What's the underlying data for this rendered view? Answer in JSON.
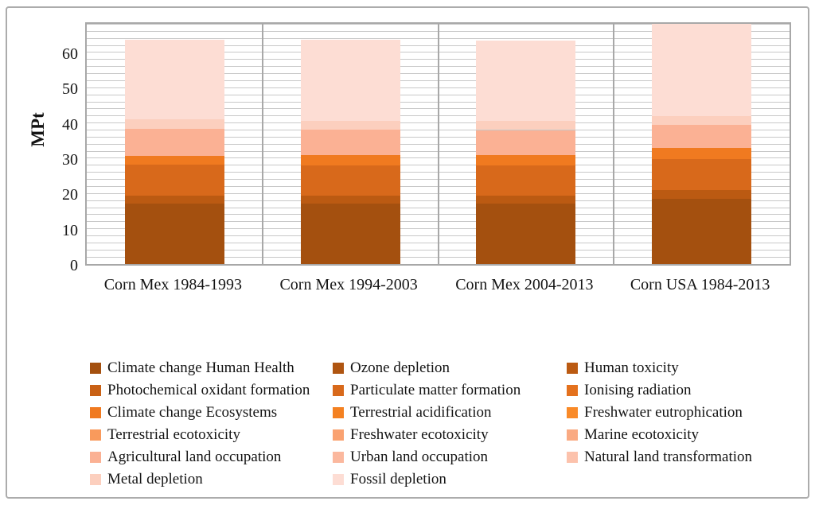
{
  "chart_data": {
    "type": "bar",
    "stacked": true,
    "title": "",
    "xlabel": "",
    "ylabel": "MPt",
    "ylim": [
      0,
      69
    ],
    "y_ticks": [
      0,
      10,
      20,
      30,
      40,
      50,
      60
    ],
    "grid": {
      "show": true,
      "minor_step": 2,
      "color": "#C8C8C8"
    },
    "legend_position": "bottom",
    "legend_columns": 3,
    "categories": [
      "Corn Mex 1984-1993",
      "Corn Mex 1994-2003",
      "Corn Mex 2004-2013",
      "Corn USA 1984-2013"
    ],
    "series": [
      {
        "name": "Climate change Human Health",
        "color": "#A4500F",
        "values": [
          17.1,
          17.1,
          17.2,
          18.6
        ]
      },
      {
        "name": "Ozone depletion",
        "color": "#AF5511",
        "values": [
          0,
          0,
          0,
          0
        ]
      },
      {
        "name": "Human toxicity",
        "color": "#BB5A12",
        "values": [
          2.2,
          2.2,
          2.1,
          2.4
        ]
      },
      {
        "name": "Photochemical oxidant formation",
        "color": "#C96115",
        "values": [
          0,
          0,
          0,
          0
        ]
      },
      {
        "name": "Particulate matter formation",
        "color": "#D8691B",
        "values": [
          9.0,
          8.7,
          8.7,
          8.8
        ]
      },
      {
        "name": "Ionising radiation",
        "color": "#E4711D",
        "values": [
          0,
          0,
          0,
          0
        ]
      },
      {
        "name": "Climate change Ecosystems",
        "color": "#F07A20",
        "values": [
          2.4,
          2.8,
          2.8,
          3.2
        ]
      },
      {
        "name": "Terrestrial acidification",
        "color": "#F48121",
        "values": [
          0,
          0,
          0,
          0
        ]
      },
      {
        "name": "Freshwater eutrophication",
        "color": "#F98A28",
        "values": [
          0,
          0,
          0,
          0
        ]
      },
      {
        "name": "Terrestrial ecotoxicity",
        "color": "#F99A5C",
        "values": [
          0,
          0,
          0,
          0
        ]
      },
      {
        "name": "Freshwater ecotoxicity",
        "color": "#FAA271",
        "values": [
          0,
          0,
          0,
          0
        ]
      },
      {
        "name": "Marine ecotoxicity",
        "color": "#FAAA82",
        "values": [
          0,
          0,
          0,
          0
        ]
      },
      {
        "name": "Agricultural land occupation",
        "color": "#FBB194",
        "values": [
          7.6,
          7.4,
          7.2,
          6.5
        ]
      },
      {
        "name": "Urban land occupation",
        "color": "#FBB89E",
        "values": [
          0,
          0,
          0,
          0
        ]
      },
      {
        "name": "Natural land transformation",
        "color": "#FCC2AC",
        "values": [
          0,
          0,
          0,
          0
        ]
      },
      {
        "name": "Metal depletion",
        "color": "#FCCFBE",
        "values": [
          2.7,
          2.5,
          2.6,
          2.4
        ]
      },
      {
        "name": "Fossil depletion",
        "color": "#FDDDD4",
        "values": [
          22.5,
          22.8,
          22.8,
          26.3
        ]
      }
    ]
  }
}
